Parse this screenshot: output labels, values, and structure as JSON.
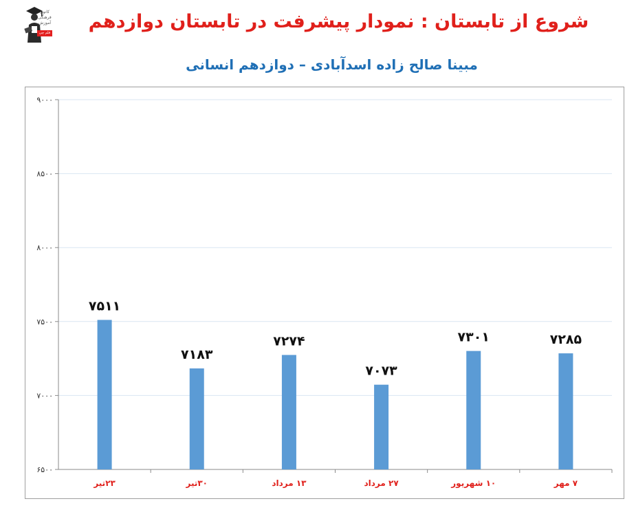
{
  "header": {
    "title": "شروع از تابستان : نمودار پیشرفت در تابستان دوازدهم",
    "subtitle": "مبینا صالح زاده اسدآبادی – دوازدهم انسانی",
    "logo_text": "کانون فرهنگی آموزش",
    "logo_tag": "قلم چی"
  },
  "colors": {
    "title": "#e0201b",
    "subtitle": "#1f6fb5",
    "bar": "#5b9bd5",
    "category_label": "#e0201b",
    "grid": "#d9e6f2"
  },
  "chart_data": {
    "type": "bar",
    "title": "",
    "xlabel": "",
    "ylabel": "",
    "categories": [
      "۲۳تیر",
      "۳۰تیر",
      "۱۳ مرداد",
      "۲۷ مرداد",
      "۱۰ شهریور",
      "۷ مهر"
    ],
    "values": [
      7511,
      7183,
      7274,
      7073,
      7301,
      7285
    ],
    "data_labels": [
      "۷۵۱۱",
      "۷۱۸۳",
      "۷۲۷۴",
      "۷۰۷۳",
      "۷۳۰۱",
      "۷۲۸۵"
    ],
    "ylim": [
      6500,
      9000
    ],
    "yticks": [
      6500,
      7000,
      7500,
      8000,
      8500,
      9000
    ],
    "ytick_labels": [
      "۶۵۰۰",
      "۷۰۰۰",
      "۷۵۰۰",
      "۸۰۰۰",
      "۸۵۰۰",
      "۹۰۰۰"
    ],
    "grid": true,
    "legend": "none"
  }
}
